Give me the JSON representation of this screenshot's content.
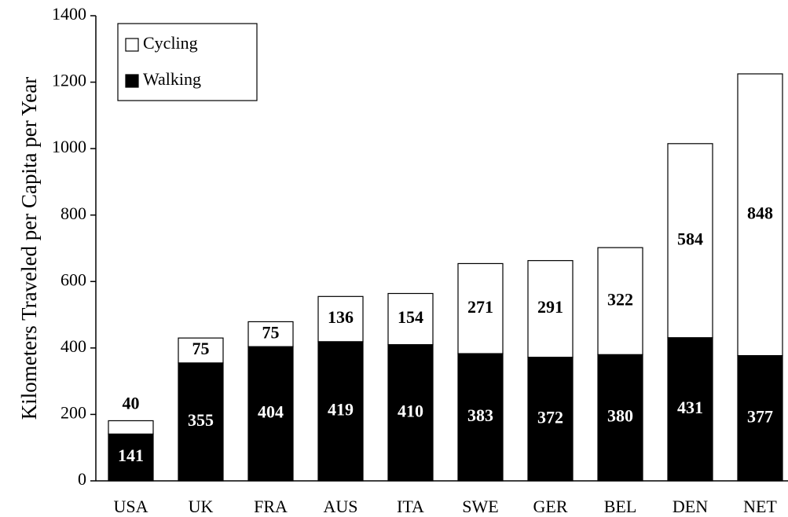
{
  "chart_data": {
    "type": "stacked_bar",
    "y_label": "Kilometers Traveled per Capita per Year",
    "categories": [
      "USA",
      "UK",
      "FRA",
      "AUS",
      "ITA",
      "SWE",
      "GER",
      "BEL",
      "DEN",
      "NET"
    ],
    "series": [
      {
        "name": "Cycling",
        "color": "#ffffff",
        "label_color": "#000000",
        "values": [
          40,
          75,
          75,
          136,
          154,
          271,
          291,
          322,
          584,
          848
        ]
      },
      {
        "name": "Walking",
        "color": "#000000",
        "label_color": "#ffffff",
        "values": [
          141,
          355,
          404,
          419,
          410,
          383,
          372,
          380,
          431,
          377
        ]
      }
    ],
    "ylim": [
      0,
      1400
    ],
    "yticks": [
      0,
      200,
      400,
      600,
      800,
      1000,
      1200,
      1400
    ],
    "grid": false,
    "legend": "upper left"
  }
}
